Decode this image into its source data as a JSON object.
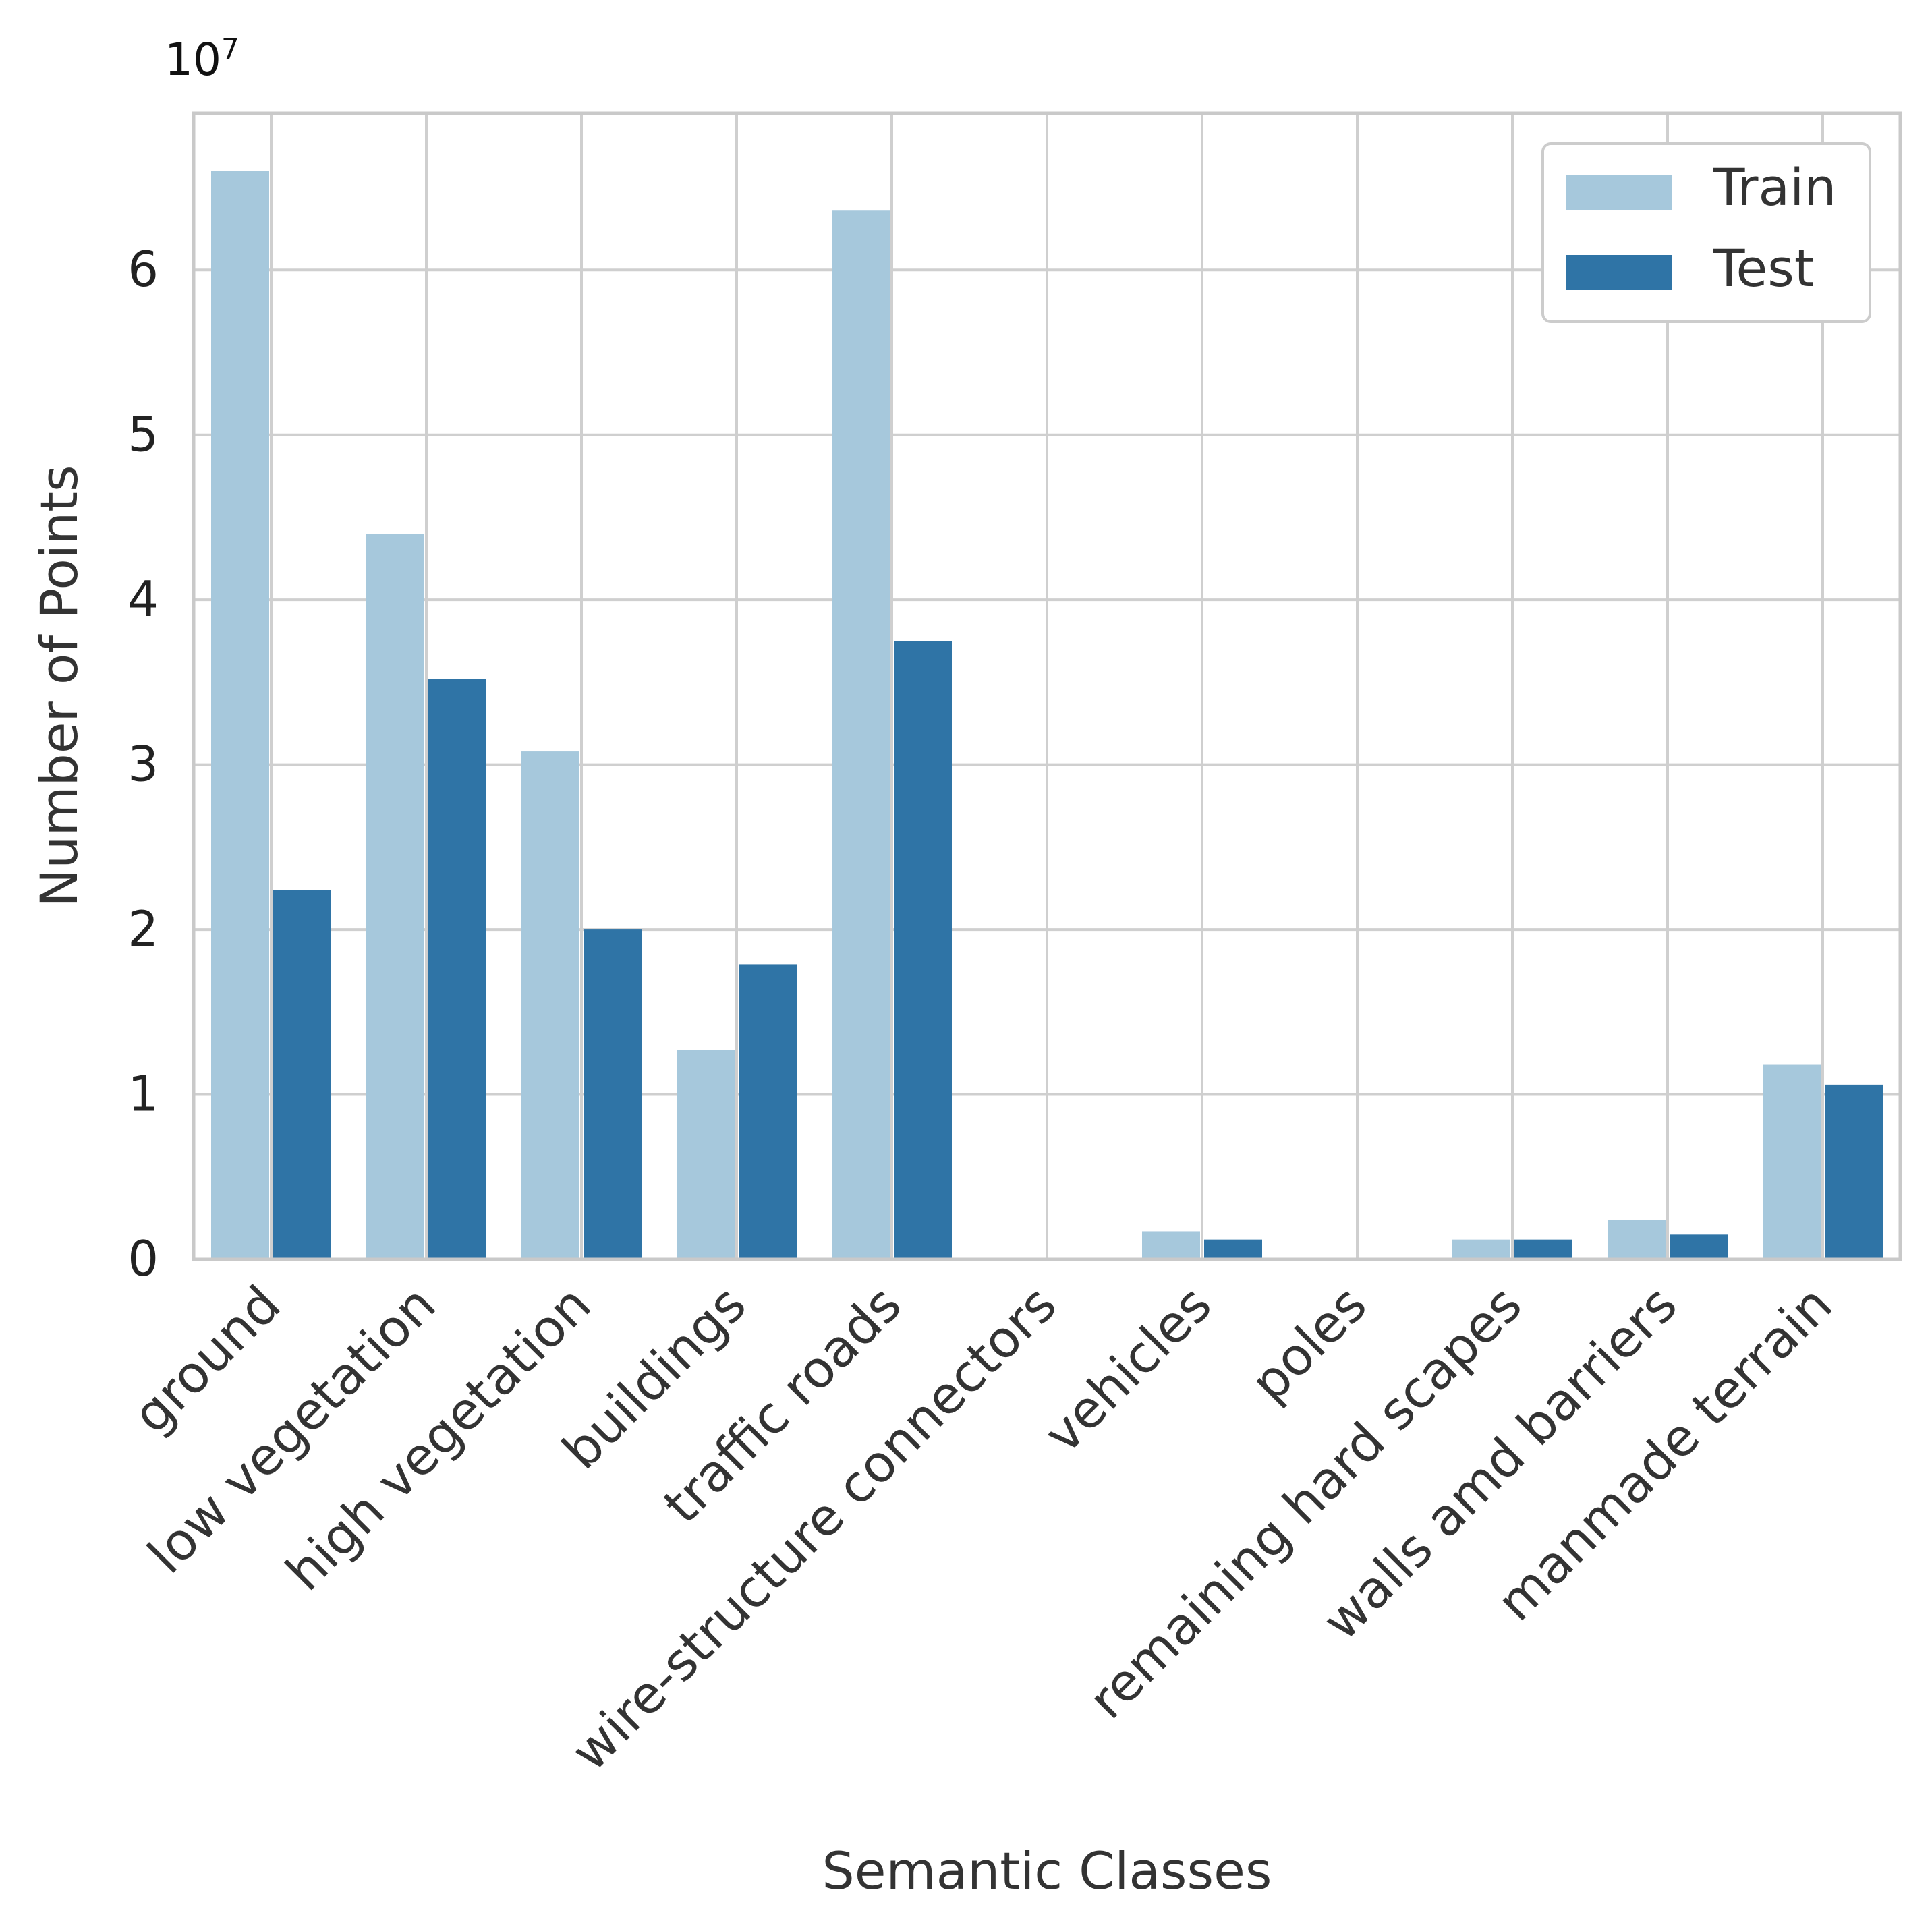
{
  "chart_data": {
    "type": "bar",
    "title": "",
    "xlabel": "Semantic Classes",
    "ylabel": "Number of Points",
    "scale_label_base": "10",
    "scale_label_exp": "7",
    "ylim": [
      0,
      6.95
    ],
    "yticks": [
      "0",
      "1",
      "2",
      "3",
      "4",
      "5",
      "6"
    ],
    "grid": true,
    "legend_position": "top-right",
    "categories": [
      "ground",
      "low vegetation",
      "high vegetation",
      "buildings",
      "traffic roads",
      "wire-structure connectors",
      "vehicles",
      "poles",
      "remaining hard scapes",
      "walls amd barriers",
      "manmade terrain"
    ],
    "series": [
      {
        "name": "Train",
        "color": "#a6c8dc",
        "values": [
          6.6,
          4.4,
          3.08,
          1.27,
          6.36,
          0.0,
          0.17,
          0.0,
          0.12,
          0.24,
          1.18
        ]
      },
      {
        "name": "Test",
        "color": "#2f74a6",
        "values": [
          2.24,
          3.52,
          2.0,
          1.79,
          3.75,
          0.0,
          0.12,
          0.0,
          0.12,
          0.15,
          1.06
        ]
      }
    ]
  }
}
